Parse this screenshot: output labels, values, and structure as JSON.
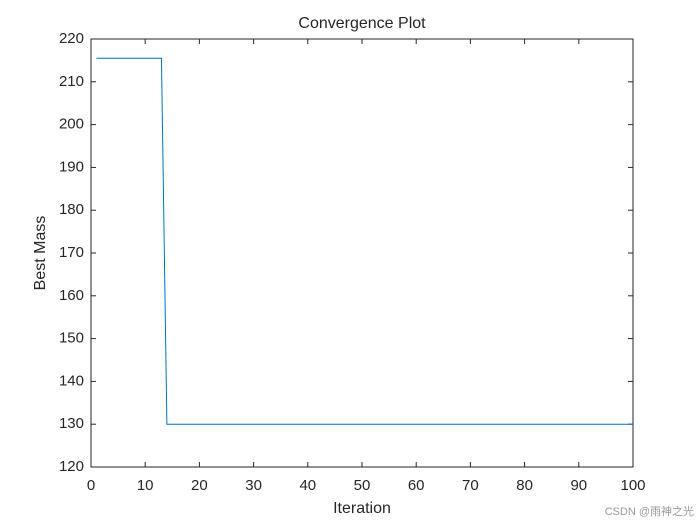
{
  "chart_data": {
    "type": "line",
    "title": "Convergence Plot",
    "xlabel": "Iteration",
    "ylabel": "Best Mass",
    "x": [
      1,
      13,
      14,
      100
    ],
    "values": [
      215.5,
      215.5,
      130,
      130
    ],
    "color": "#0072bd",
    "xlim": [
      0,
      100
    ],
    "xticks": [
      0,
      10,
      20,
      30,
      40,
      50,
      60,
      70,
      80,
      90,
      100
    ],
    "ylim": [
      120,
      220
    ],
    "yticks": [
      120,
      130,
      140,
      150,
      160,
      170,
      180,
      190,
      200,
      210,
      220
    ],
    "box": true,
    "watermark": "CSDN @雨神之光"
  }
}
